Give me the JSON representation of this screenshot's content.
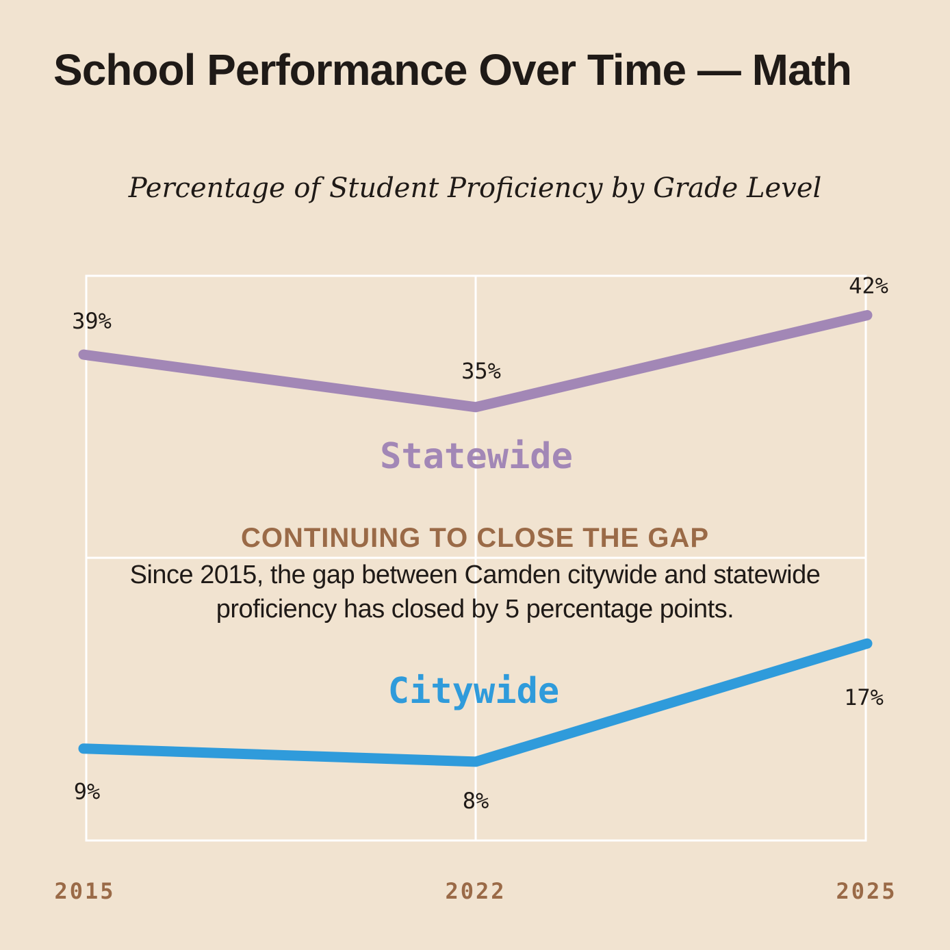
{
  "title": "School Performance Over Time — Math",
  "subtitle": "Percentage of Student Proficiency by Grade Level",
  "callout": {
    "heading": "CONTINUING TO CLOSE THE GAP",
    "text": "Since 2015, the gap between Camden citywide and statewide proficiency has closed by 5 percentage points."
  },
  "colors": {
    "background": "#f1e3d0",
    "statewide": "#a287b6",
    "citywide": "#2f9bdb",
    "axis_label": "#9a6a47",
    "grid": "#ffffff"
  },
  "chart_data": {
    "type": "line",
    "title": "School Performance Over Time — Math",
    "subtitle": "Percentage of Student Proficiency by Grade Level",
    "categories": [
      "2015",
      "2022",
      "2025"
    ],
    "series": [
      {
        "name": "Statewide",
        "values": [
          39,
          35,
          42
        ],
        "labels": [
          "39%",
          "35%",
          "42%"
        ]
      },
      {
        "name": "Citywide",
        "values": [
          9,
          8,
          17
        ],
        "labels": [
          "9%",
          "8%",
          "17%"
        ]
      }
    ],
    "ylim": [
      2,
      45
    ],
    "xlabel": "",
    "ylabel": "",
    "grid": true,
    "legend": "inline series labels"
  }
}
